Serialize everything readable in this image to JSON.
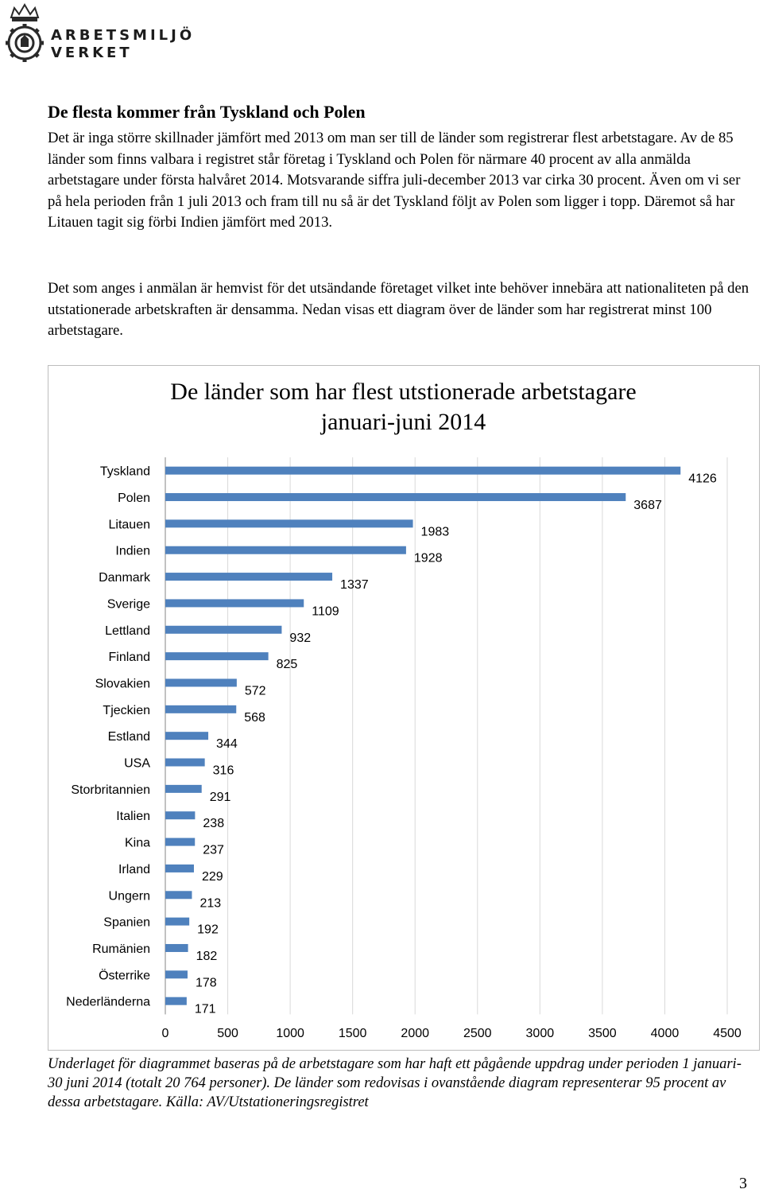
{
  "header": {
    "logo_line1": "ARBETSMILJÖ",
    "logo_line2": "VERKET",
    "crest_icon": "crown-gear-crest-icon"
  },
  "section": {
    "heading": "De flesta kommer från Tyskland och Polen",
    "paragraph1": "Det är inga större skillnader jämfört med 2013 om man ser till de länder som registrerar flest arbetstagare. Av de 85 länder som finns valbara i registret står företag i Tyskland och Polen för närmare 40 procent av alla anmälda arbetstagare under första halvåret 2014. Motsvarande siffra juli-december 2013 var cirka 30 procent. Även om vi ser på hela perioden från 1 juli 2013 och fram till nu så är det Tyskland följt av Polen som ligger i topp. Däremot så har Litauen tagit sig förbi Indien jämfört med 2013.",
    "paragraph2": "Det som anges i anmälan är hemvist för det utsändande företaget vilket inte behöver innebära att nationaliteten på den utstationerade arbetskraften är densamma. Nedan visas ett diagram över de länder som har registrerat minst 100 arbetstagare."
  },
  "chart_data": {
    "type": "bar",
    "orientation": "horizontal",
    "title_line1": "De länder som har flest utstionerade arbetstagare",
    "title_line2": "januari-juni 2014",
    "categories": [
      "Tyskland",
      "Polen",
      "Litauen",
      "Indien",
      "Danmark",
      "Sverige",
      "Lettland",
      "Finland",
      "Slovakien",
      "Tjeckien",
      "Estland",
      "USA",
      "Storbritannien",
      "Italien",
      "Kina",
      "Irland",
      "Ungern",
      "Spanien",
      "Rumänien",
      "Österrike",
      "Nederländerna"
    ],
    "values": [
      4126,
      3687,
      1983,
      1928,
      1337,
      1109,
      932,
      825,
      572,
      568,
      344,
      316,
      291,
      238,
      237,
      229,
      213,
      192,
      182,
      178,
      171
    ],
    "xlim": [
      0,
      4500
    ],
    "xticks": [
      0,
      500,
      1000,
      1500,
      2000,
      2500,
      3000,
      3500,
      4000,
      4500
    ],
    "grid": true,
    "data_labels": true,
    "bar_color": "#4f81bd"
  },
  "caption": "Underlaget för diagrammet baseras på de arbetstagare som har haft ett pågående uppdrag under perioden 1 januari-30 juni 2014 (totalt 20 764 personer). De länder som redovisas i ovanstående diagram representerar 95 procent av dessa arbetstagare. Källa: AV/Utstationeringsregistret",
  "page_number": "3"
}
